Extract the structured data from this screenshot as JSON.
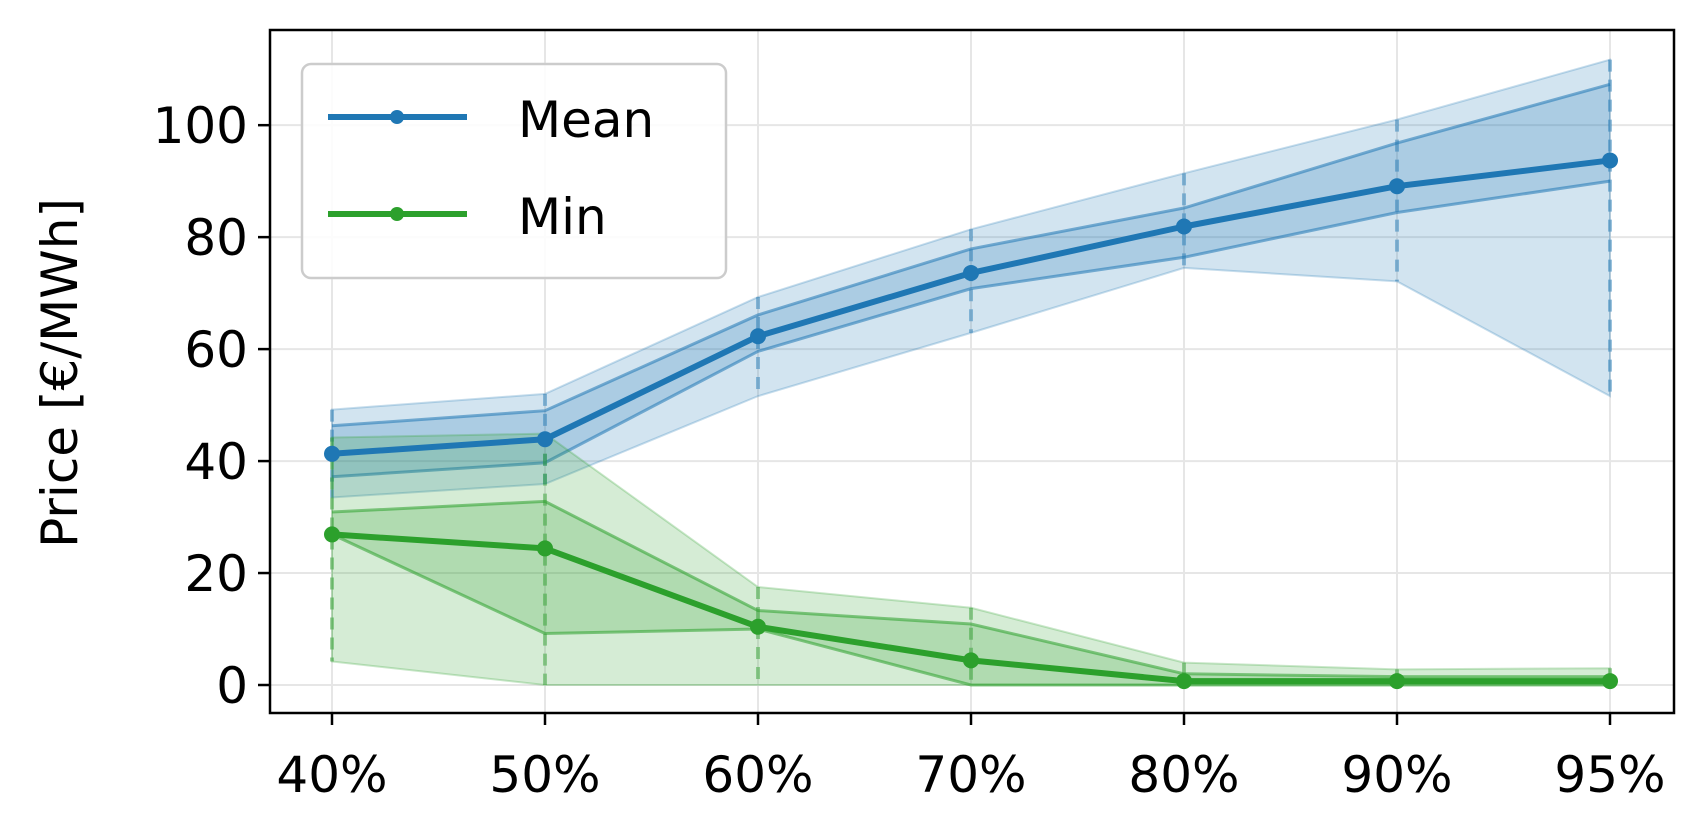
{
  "chart_data": {
    "type": "line",
    "title": "",
    "xlabel": "",
    "ylabel": "Price [€/MWh]",
    "categories": [
      "40%",
      "50%",
      "60%",
      "70%",
      "80%",
      "90%",
      "95%"
    ],
    "ylim": [
      -5,
      117
    ],
    "yticks": [
      0,
      20,
      40,
      60,
      80,
      100
    ],
    "grid": true,
    "legend_position": "top-left",
    "series": [
      {
        "name": "Mean",
        "color": "#1f77b4",
        "values": [
          41.3,
          43.9,
          62.3,
          73.6,
          81.9,
          89.1,
          93.7
        ],
        "inner_band": {
          "lower": [
            37.2,
            39.7,
            59.6,
            70.8,
            76.4,
            84.4,
            90.0
          ],
          "upper": [
            46.3,
            49.0,
            66.1,
            77.9,
            85.2,
            96.8,
            107.3
          ]
        },
        "outer_band": {
          "lower": [
            33.5,
            35.9,
            51.6,
            62.9,
            74.5,
            72.1,
            51.6
          ],
          "upper": [
            49.2,
            52.0,
            69.3,
            81.4,
            91.4,
            101.0,
            111.7
          ]
        }
      },
      {
        "name": "Min",
        "color": "#2ca02c",
        "values": [
          26.9,
          24.4,
          10.4,
          4.4,
          0.7,
          0.7,
          0.7
        ],
        "inner_band": {
          "lower": [
            26.9,
            9.2,
            10.0,
            0.0,
            0.0,
            0.0,
            0.0
          ],
          "upper": [
            30.9,
            32.8,
            13.3,
            10.9,
            2.0,
            1.5,
            1.5
          ]
        },
        "outer_band": {
          "lower": [
            4.2,
            0.0,
            0.0,
            0.0,
            0.0,
            0.0,
            0.0
          ],
          "upper": [
            44.2,
            44.9,
            17.5,
            13.8,
            4.0,
            2.8,
            3.0
          ]
        }
      }
    ]
  }
}
